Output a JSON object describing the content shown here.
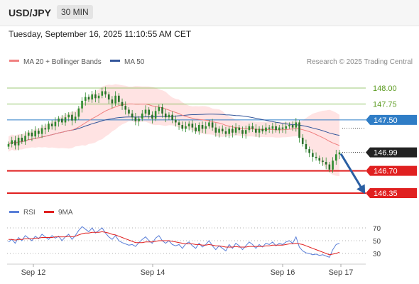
{
  "header": {
    "symbol": "USD/JPY",
    "timeframe": "30 MIN",
    "datetime": "Tuesday, September 16, 2025 11:10:55 AM CET"
  },
  "legend": {
    "ma20_label": "MA 20 + Bollinger Bands",
    "ma50_label": "MA 50",
    "credit": "Research © 2025 Trading Central"
  },
  "rsi_legend": {
    "rsi_label": "RSI",
    "ma_label": "9MA"
  },
  "colors": {
    "candle": "#2e8b2e",
    "bollinger": "#ffd9d9",
    "ma20": "#f08080",
    "ma50": "#33559a",
    "resistance": "#7bb84a",
    "pivot": "#2f7dc6",
    "support": "#e02020",
    "last": "#222222",
    "arrow": "#2a5fa3",
    "rsi": "#5a7fd8",
    "rsi_ma": "#e02020"
  },
  "chart_data": {
    "type": "candlestick",
    "x_ticks": [
      "Sep 12",
      "Sep 14",
      "Sep 16",
      "Sep 17"
    ],
    "y_range": [
      146.2,
      148.2
    ],
    "levels": [
      {
        "value": 148.0,
        "label": "148.00",
        "kind": "resistance"
      },
      {
        "value": 147.75,
        "label": "147.75",
        "kind": "resistance"
      },
      {
        "value": 147.5,
        "label": "147.50",
        "kind": "pivot"
      },
      {
        "value": 146.99,
        "label": "146.99",
        "kind": "last"
      },
      {
        "value": 146.7,
        "label": "146.70",
        "kind": "support"
      },
      {
        "value": 146.35,
        "label": "146.35",
        "kind": "support"
      }
    ],
    "close": [
      147.12,
      147.18,
      147.1,
      147.22,
      147.16,
      147.25,
      147.3,
      147.24,
      147.33,
      147.28,
      147.37,
      147.35,
      147.44,
      147.4,
      147.47,
      147.52,
      147.46,
      147.54,
      147.58,
      147.49,
      147.55,
      147.68,
      147.8,
      147.86,
      147.82,
      147.9,
      147.84,
      147.88,
      147.95,
      147.9,
      147.82,
      147.76,
      147.88,
      147.78,
      147.72,
      147.66,
      147.6,
      147.54,
      147.48,
      147.52,
      147.6,
      147.66,
      147.58,
      147.52,
      147.64,
      147.7,
      147.6,
      147.54,
      147.58,
      147.5,
      147.46,
      147.42,
      147.36,
      147.4,
      147.44,
      147.38,
      147.32,
      147.42,
      147.36,
      147.4,
      147.46,
      147.38,
      147.3,
      147.36,
      147.32,
      147.28,
      147.36,
      147.3,
      147.38,
      147.34,
      147.28,
      147.34,
      147.4,
      147.36,
      147.3,
      147.36,
      147.32,
      147.38,
      147.36,
      147.4,
      147.34,
      147.38,
      147.36,
      147.4,
      147.42,
      147.38,
      147.46,
      147.22,
      147.12,
      147.04,
      146.98,
      146.92,
      146.9,
      146.86,
      146.84,
      146.8,
      146.72,
      146.86,
      146.96,
      146.99
    ],
    "rsi": {
      "levels": [
        70,
        50,
        30
      ],
      "values": [
        48,
        52,
        46,
        55,
        50,
        58,
        54,
        50,
        57,
        53,
        60,
        56,
        52,
        58,
        54,
        57,
        50,
        56,
        60,
        52,
        58,
        66,
        72,
        68,
        64,
        70,
        62,
        66,
        70,
        62,
        56,
        52,
        58,
        50,
        47,
        45,
        43,
        44,
        41,
        47,
        52,
        56,
        50,
        46,
        54,
        58,
        50,
        46,
        50,
        44,
        42,
        44,
        38,
        45,
        48,
        42,
        38,
        46,
        40,
        44,
        50,
        42,
        36,
        42,
        38,
        34,
        44,
        38,
        46,
        42,
        36,
        42,
        48,
        44,
        38,
        44,
        40,
        46,
        44,
        48,
        42,
        46,
        44,
        48,
        50,
        46,
        56,
        40,
        34,
        31,
        30,
        28,
        29,
        27,
        28,
        26,
        24,
        36,
        44,
        46
      ],
      "ma": [
        52,
        52,
        51,
        52,
        52,
        53,
        53,
        53,
        54,
        54,
        55,
        55,
        55,
        55,
        56,
        56,
        56,
        56,
        57,
        56,
        57,
        59,
        61,
        62,
        62,
        63,
        63,
        63,
        64,
        63,
        62,
        60,
        59,
        57,
        55,
        53,
        51,
        49,
        47,
        47,
        47,
        48,
        48,
        48,
        49,
        50,
        50,
        50,
        50,
        49,
        48,
        47,
        46,
        45,
        45,
        45,
        44,
        44,
        43,
        43,
        44,
        43,
        42,
        42,
        41,
        40,
        40,
        40,
        41,
        40,
        40,
        40,
        41,
        41,
        41,
        41,
        41,
        42,
        42,
        43,
        43,
        43,
        43,
        44,
        45,
        45,
        46,
        45,
        44,
        42,
        40,
        38,
        36,
        34,
        32,
        30,
        28,
        29,
        30,
        32
      ]
    }
  }
}
